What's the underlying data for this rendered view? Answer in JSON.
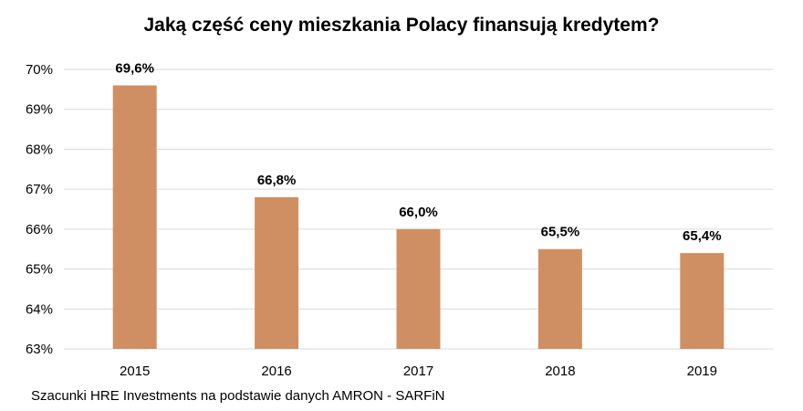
{
  "chart_data": {
    "type": "bar",
    "title": "Jaką część ceny mieszkania Polacy finansują kredytem?",
    "categories": [
      "2015",
      "2016",
      "2017",
      "2018",
      "2019"
    ],
    "values": [
      69.6,
      66.8,
      66.0,
      65.5,
      65.4
    ],
    "data_labels": [
      "69,6%",
      "66,8%",
      "66,0%",
      "65,5%",
      "65,4%"
    ],
    "ylim": [
      63,
      70
    ],
    "yticks": [
      63,
      64,
      65,
      66,
      67,
      68,
      69,
      70
    ],
    "ytick_labels": [
      "63%",
      "64%",
      "65%",
      "66%",
      "67%",
      "68%",
      "69%",
      "70%"
    ],
    "xlabel": "",
    "ylabel": "",
    "grid": true,
    "bar_color": "#D08F63",
    "grid_color": "#D9D9D9"
  },
  "source": "Szacunki HRE Investments na podstawie danych AMRON - SARFiN"
}
